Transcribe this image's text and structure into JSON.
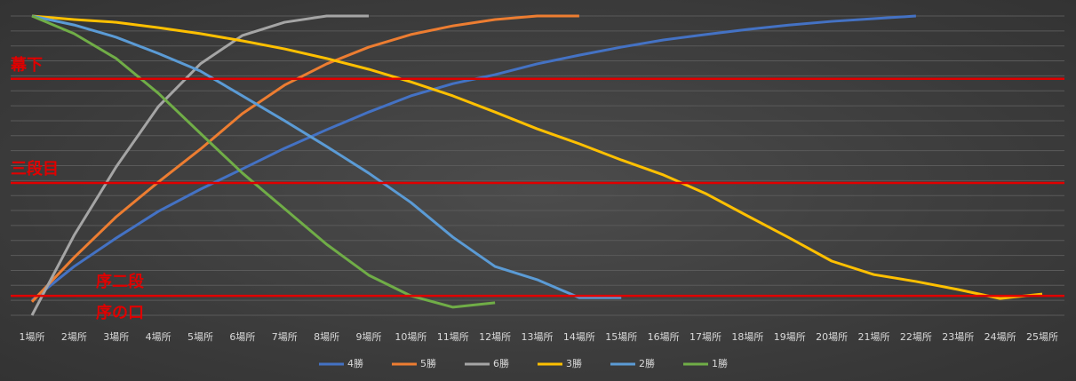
{
  "chart_data": {
    "type": "line",
    "categories": [
      "1場所",
      "2場所",
      "3場所",
      "4場所",
      "5場所",
      "6場所",
      "7場所",
      "8場所",
      "9場所",
      "10場所",
      "11場所",
      "12場所",
      "13場所",
      "14場所",
      "15場所",
      "16場所",
      "17場所",
      "18場所",
      "19場所",
      "20場所",
      "21場所",
      "22場所",
      "23場所",
      "24場所",
      "25場所"
    ],
    "series": [
      {
        "name": "4勝",
        "color": "#4472c4",
        "values": [
          5.0,
          16.3,
          25.8,
          34.7,
          42.1,
          48.9,
          55.8,
          62.0,
          67.9,
          73.3,
          77.4,
          80.4,
          84.0,
          86.9,
          89.6,
          92.0,
          93.8,
          95.5,
          97.0,
          98.2,
          99.1,
          100,
          null,
          null,
          null
        ]
      },
      {
        "name": "5勝",
        "color": "#ed7d31",
        "values": [
          4.5,
          19.3,
          32.9,
          44.5,
          55.5,
          67.4,
          76.9,
          84.0,
          89.6,
          93.8,
          96.7,
          98.8,
          100,
          100,
          null,
          null,
          null,
          null,
          null,
          null,
          null,
          null,
          null,
          null,
          null
        ]
      },
      {
        "name": "6勝",
        "color": "#a5a5a5",
        "values": [
          0,
          26.7,
          49.6,
          69.7,
          84.0,
          93.5,
          97.9,
          100,
          100,
          null,
          null,
          null,
          null,
          null,
          null,
          null,
          null,
          null,
          null,
          null,
          null,
          null,
          null,
          null,
          null
        ]
      },
      {
        "name": "3勝",
        "color": "#ffc000",
        "values": [
          100,
          98.8,
          97.9,
          96.1,
          94.1,
          91.7,
          89.0,
          85.8,
          82.2,
          78.0,
          73.3,
          67.9,
          62.3,
          57.3,
          51.9,
          46.9,
          40.7,
          33.2,
          25.8,
          18.1,
          13.6,
          11.3,
          8.6,
          5.6,
          7.1
        ]
      },
      {
        "name": "2勝",
        "color": "#5b9bd5",
        "values": [
          100,
          97.0,
          92.9,
          87.5,
          81.6,
          73.3,
          65.0,
          56.4,
          47.5,
          37.7,
          26.1,
          16.3,
          11.9,
          5.9,
          5.9,
          null,
          null,
          null,
          null,
          null,
          null,
          null,
          null,
          null,
          null
        ]
      },
      {
        "name": "1勝",
        "color": "#70ad47",
        "values": [
          100,
          94.1,
          85.8,
          74.2,
          60.8,
          47.5,
          35.6,
          23.7,
          13.4,
          6.5,
          2.7,
          4.2,
          null,
          null,
          null,
          null,
          null,
          null,
          null,
          null,
          null,
          null,
          null,
          null,
          null
        ]
      }
    ],
    "ylim": [
      0,
      100
    ],
    "yticks": [
      0,
      5,
      10,
      15,
      20,
      25,
      30,
      35,
      40,
      45,
      50,
      55,
      60,
      65,
      70,
      75,
      80,
      85,
      90,
      95,
      100
    ],
    "grid": true,
    "reference_lines": [
      {
        "label": "幕下",
        "value": 79
      },
      {
        "label": "三段目",
        "value": 44.2
      },
      {
        "label": "序二段",
        "value": 6.5
      }
    ],
    "bottom_label": "序の口",
    "reference_color": "#e00000",
    "legend": "bottom"
  }
}
